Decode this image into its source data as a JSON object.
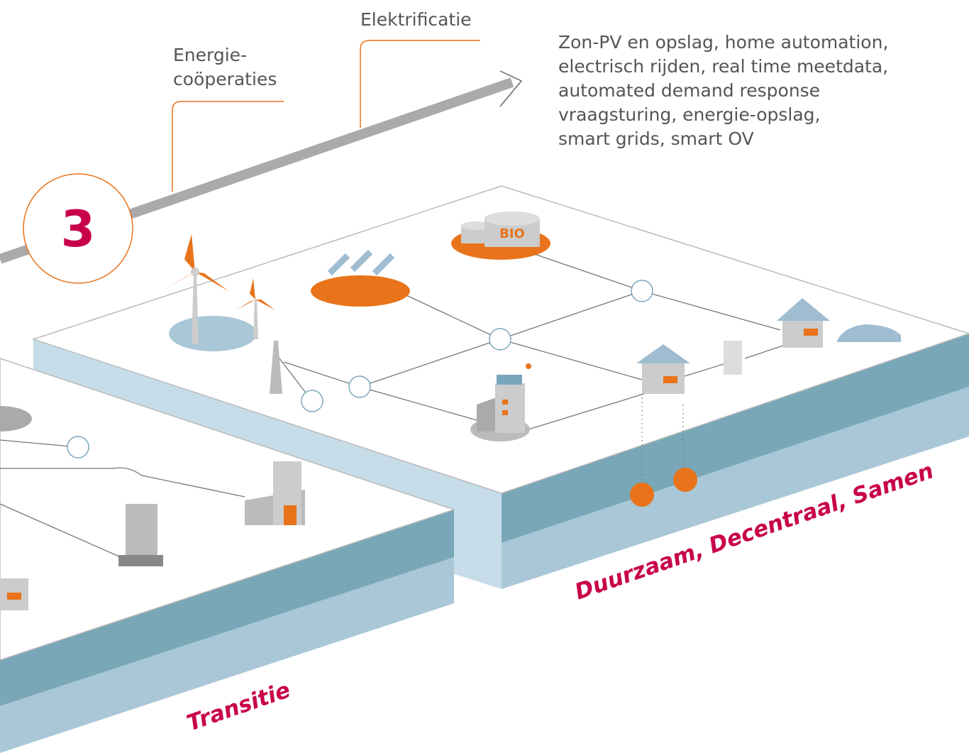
{
  "labels": {
    "elektrificatie": "Elektrificatie",
    "energie_cooperaties": [
      "Energie-",
      "coöperaties"
    ],
    "description": [
      "Zon-PV en opslag, home automation,",
      "electrisch rijden, real time meetdata,",
      "automated demand response",
      "vraagsturing, energie-opslag,",
      "smart grids, smart OV"
    ],
    "step": "3",
    "bio": "BIO",
    "scenario": "Duurzaam, Decentraal, Samen",
    "transition": "Transitie"
  }
}
